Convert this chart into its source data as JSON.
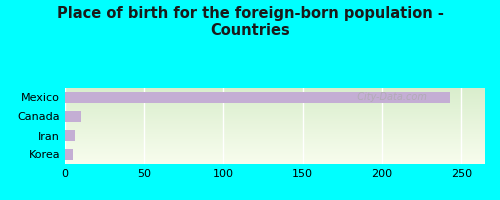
{
  "title": "Place of birth for the foreign-born population -\nCountries",
  "categories": [
    "Korea",
    "Iran",
    "Canada",
    "Mexico"
  ],
  "values": [
    5,
    6,
    10,
    243
  ],
  "bar_color": "#c4aed4",
  "background_color": "#00ffff",
  "plot_bg_top": "#d8edcc",
  "plot_bg_bottom": "#f0f8e8",
  "xlim": [
    0,
    265
  ],
  "xticks": [
    0,
    50,
    100,
    150,
    200,
    250
  ],
  "title_fontsize": 10.5,
  "tick_fontsize": 8,
  "label_fontsize": 8,
  "watermark": "  City-Data.com"
}
